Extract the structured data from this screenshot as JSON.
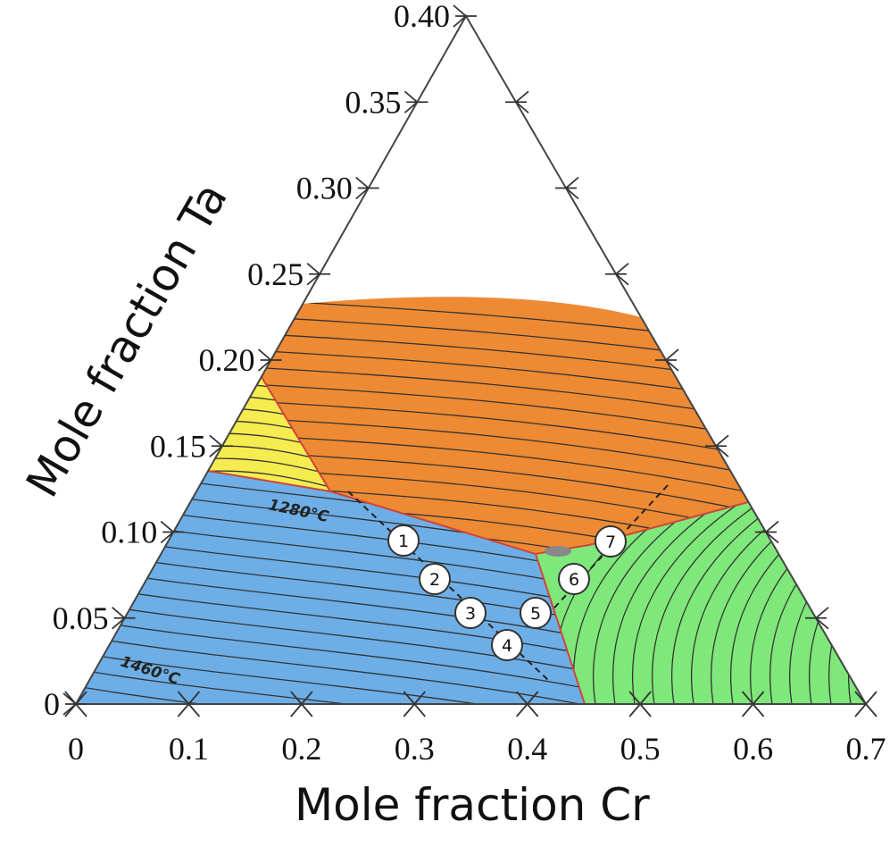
{
  "axes": {
    "left_title": "Mole fraction Ta",
    "bottom_title": "Mole fraction Cr",
    "left_ticks": [
      "0",
      "0.05",
      "0.10",
      "0.15",
      "0.20",
      "0.25",
      "0.30",
      "0.35",
      "0.40"
    ],
    "bottom_ticks": [
      "0",
      "0.1",
      "0.2",
      "0.3",
      "0.4",
      "0.5",
      "0.6",
      "0.7"
    ]
  },
  "isotherms": [
    "1280°C",
    "1460°C"
  ],
  "points": [
    "1",
    "2",
    "3",
    "4",
    "5",
    "6",
    "7"
  ]
}
